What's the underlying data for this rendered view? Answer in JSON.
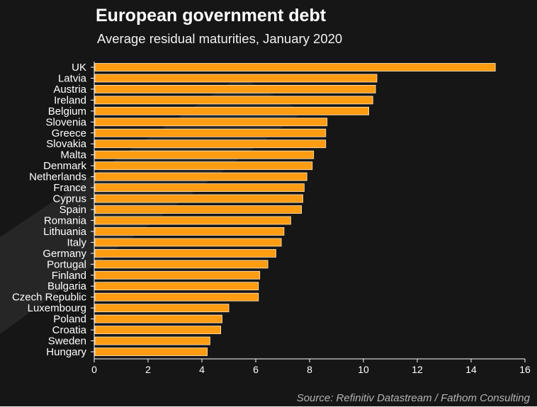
{
  "source": "Source: Refinitiv Datastream / Fathom Consulting",
  "colors": {
    "background": "#161616",
    "watermark": "#262626",
    "bar": "#ff9c12",
    "bar_outline": "#ffe9c4",
    "axis": "#ffffff",
    "text": "#ffffff"
  },
  "chart_data": {
    "type": "bar",
    "orientation": "horizontal",
    "title": "European government debt",
    "subtitle": "Average residual maturities, January 2020",
    "categories": [
      "UK",
      "Latvia",
      "Austria",
      "Ireland",
      "Belgium",
      "Slovenia",
      "Greece",
      "Slovakia",
      "Malta",
      "Denmark",
      "Netherlands",
      "France",
      "Cyprus",
      "Spain",
      "Romania",
      "Lithuania",
      "Italy",
      "Germany",
      "Portugal",
      "Finland",
      "Bulgaria",
      "Czech Republic",
      "Luxembourg",
      "Poland",
      "Croatia",
      "Sweden",
      "Hungary"
    ],
    "values": [
      14.9,
      10.5,
      10.45,
      10.35,
      10.2,
      8.65,
      8.6,
      8.6,
      8.15,
      8.1,
      7.9,
      7.8,
      7.75,
      7.7,
      7.3,
      7.05,
      6.95,
      6.75,
      6.45,
      6.15,
      6.1,
      6.1,
      5.0,
      4.75,
      4.7,
      4.3,
      4.2
    ],
    "xlim": [
      0,
      16
    ],
    "xticks": [
      0,
      2,
      4,
      6,
      8,
      10,
      12,
      14,
      16
    ],
    "grid": false,
    "legend": "none"
  }
}
